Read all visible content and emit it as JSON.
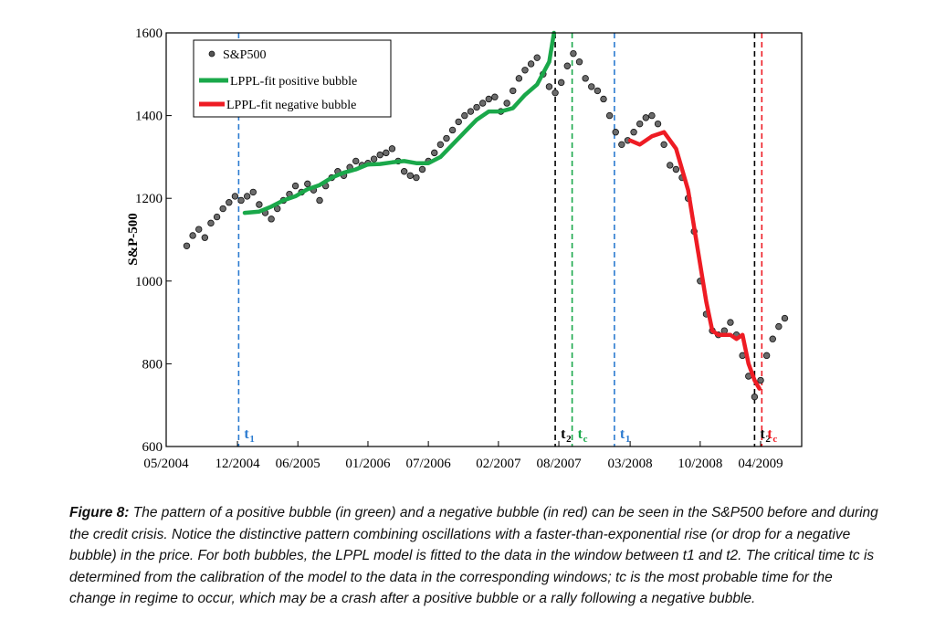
{
  "chart_data": {
    "type": "scatter",
    "ylabel": "S&P-500",
    "xlabel": "",
    "ylim": [
      600,
      1600
    ],
    "yticks": [
      600,
      800,
      1000,
      1200,
      1400,
      1600
    ],
    "xticks": [
      {
        "label": "05/2004",
        "x": 2004.33
      },
      {
        "label": "12/2004",
        "x": 2004.92
      },
      {
        "label": "06/2005",
        "x": 2005.42
      },
      {
        "label": "01/2006",
        "x": 2006.0
      },
      {
        "label": "07/2006",
        "x": 2006.5
      },
      {
        "label": "02/2007",
        "x": 2007.08
      },
      {
        "label": "08/2007",
        "x": 2007.58
      },
      {
        "label": "03/2008",
        "x": 2008.17
      },
      {
        "label": "10/2008",
        "x": 2008.75
      },
      {
        "label": "04/2009",
        "x": 2009.25
      }
    ],
    "xlim": [
      2004.33,
      2009.59
    ],
    "grid": false,
    "legend_position": "top-left",
    "legend": [
      {
        "label": "S&P500",
        "kind": "marker",
        "color": "#555555"
      },
      {
        "label": "LPPL-fit positive bubble",
        "kind": "line",
        "color": "#1aa84a"
      },
      {
        "label": "LPPL-fit negative bubble",
        "kind": "line",
        "color": "#ee1c24"
      }
    ],
    "series": [
      {
        "name": "S&P500",
        "kind": "scatter",
        "color": "#555555",
        "x": [
          2004.5,
          2004.55,
          2004.6,
          2004.65,
          2004.7,
          2004.75,
          2004.8,
          2004.85,
          2004.9,
          2004.95,
          2005.0,
          2005.05,
          2005.1,
          2005.15,
          2005.2,
          2005.25,
          2005.3,
          2005.35,
          2005.4,
          2005.45,
          2005.5,
          2005.55,
          2005.6,
          2005.65,
          2005.7,
          2005.75,
          2005.8,
          2005.85,
          2005.9,
          2005.95,
          2006.0,
          2006.05,
          2006.1,
          2006.15,
          2006.2,
          2006.25,
          2006.3,
          2006.35,
          2006.4,
          2006.45,
          2006.5,
          2006.55,
          2006.6,
          2006.65,
          2006.7,
          2006.75,
          2006.8,
          2006.85,
          2006.9,
          2006.95,
          2007.0,
          2007.05,
          2007.1,
          2007.15,
          2007.2,
          2007.25,
          2007.3,
          2007.35,
          2007.4,
          2007.45,
          2007.5,
          2007.55,
          2007.6,
          2007.65,
          2007.7,
          2007.75,
          2007.8,
          2007.85,
          2007.9,
          2007.95,
          2008.0,
          2008.05,
          2008.1,
          2008.15,
          2008.2,
          2008.25,
          2008.3,
          2008.35,
          2008.4,
          2008.45,
          2008.5,
          2008.55,
          2008.6,
          2008.65,
          2008.7,
          2008.75,
          2008.8,
          2008.85,
          2008.9,
          2008.95,
          2009.0,
          2009.05,
          2009.1,
          2009.15,
          2009.2,
          2009.25,
          2009.3,
          2009.35,
          2009.4,
          2009.45
        ],
        "y": [
          1085,
          1110,
          1125,
          1105,
          1140,
          1155,
          1175,
          1190,
          1205,
          1195,
          1205,
          1215,
          1185,
          1165,
          1150,
          1175,
          1195,
          1210,
          1230,
          1215,
          1235,
          1220,
          1195,
          1230,
          1250,
          1265,
          1255,
          1275,
          1290,
          1280,
          1285,
          1295,
          1305,
          1310,
          1320,
          1290,
          1265,
          1255,
          1250,
          1270,
          1290,
          1310,
          1330,
          1345,
          1365,
          1385,
          1400,
          1410,
          1420,
          1430,
          1440,
          1445,
          1410,
          1430,
          1460,
          1490,
          1510,
          1525,
          1540,
          1500,
          1470,
          1455,
          1480,
          1520,
          1550,
          1530,
          1490,
          1470,
          1460,
          1440,
          1400,
          1360,
          1330,
          1340,
          1360,
          1380,
          1395,
          1400,
          1380,
          1330,
          1280,
          1270,
          1250,
          1200,
          1120,
          1000,
          920,
          880,
          870,
          880,
          900,
          870,
          820,
          770,
          720,
          760,
          820,
          860,
          890,
          910
        ]
      },
      {
        "name": "LPPL-fit positive bubble",
        "kind": "line",
        "color": "#1aa84a",
        "x": [
          2004.98,
          2005.1,
          2005.2,
          2005.3,
          2005.4,
          2005.5,
          2005.6,
          2005.7,
          2005.8,
          2005.9,
          2006.0,
          2006.1,
          2006.2,
          2006.3,
          2006.4,
          2006.5,
          2006.6,
          2006.7,
          2006.8,
          2006.9,
          2007.0,
          2007.1,
          2007.2,
          2007.3,
          2007.4,
          2007.5,
          2007.54
        ],
        "y": [
          1165,
          1168,
          1180,
          1195,
          1205,
          1222,
          1232,
          1250,
          1262,
          1270,
          1282,
          1283,
          1287,
          1290,
          1285,
          1285,
          1300,
          1330,
          1360,
          1390,
          1410,
          1410,
          1418,
          1450,
          1475,
          1530,
          1600
        ]
      },
      {
        "name": "LPPL-fit negative bubble",
        "kind": "line",
        "color": "#ee1c24",
        "x": [
          2008.17,
          2008.25,
          2008.35,
          2008.45,
          2008.55,
          2008.65,
          2008.7,
          2008.8,
          2008.85,
          2008.9,
          2009.0,
          2009.05,
          2009.1,
          2009.15,
          2009.2,
          2009.24
        ],
        "y": [
          1340,
          1330,
          1350,
          1360,
          1320,
          1220,
          1130,
          950,
          880,
          870,
          870,
          860,
          870,
          800,
          760,
          740
        ]
      }
    ],
    "vlines": [
      {
        "x": 2004.93,
        "color": "#2b7bd0",
        "label": "t",
        "sub": "1"
      },
      {
        "x": 2007.55,
        "color": "#000000",
        "label": "t",
        "sub": "2"
      },
      {
        "x": 2007.69,
        "color": "#1aa84a",
        "label": "t",
        "sub": "c"
      },
      {
        "x": 2008.04,
        "color": "#2b7bd0",
        "label": "t",
        "sub": "1"
      },
      {
        "x": 2009.2,
        "color": "#000000",
        "label": "t",
        "sub": "2"
      },
      {
        "x": 2009.26,
        "color": "#ee1c24",
        "label": "t",
        "sub": "c"
      }
    ]
  },
  "caption": {
    "lead": "Figure 8:",
    "text": " The pattern of a positive bubble (in green) and a negative bubble (in red) can be seen in the S&P500 before and during the credit crisis. Notice the distinctive pattern combining oscillations with a faster-than-exponential rise (or drop for a negative bubble) in the price. For both bubbles, the LPPL model is fitted to the data in the window between t1 and t2. The critical time tc is determined from the calibration of the model to the data in the corresponding windows; tc is the most probable time for the change in regime to occur, which may be a crash after a positive bubble or a rally following a negative bubble."
  }
}
